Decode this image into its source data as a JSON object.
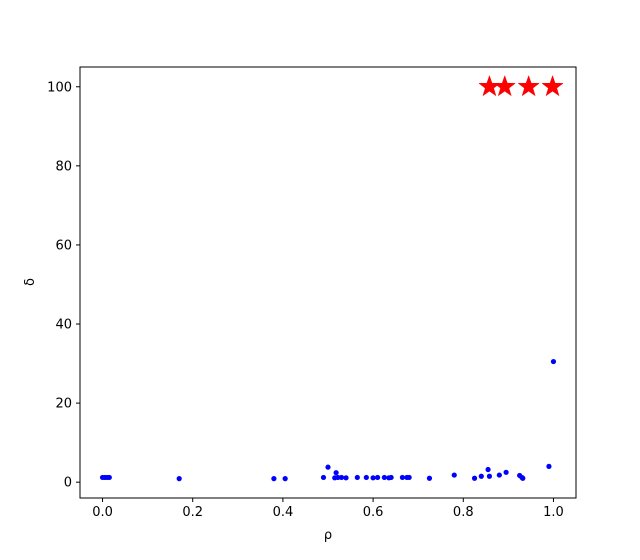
{
  "chart_data": {
    "type": "scatter",
    "title": "",
    "xlabel": "ρ",
    "ylabel": "δ",
    "xlim": [
      -0.05,
      1.05
    ],
    "ylim": [
      -4,
      105
    ],
    "xticks": [
      0.0,
      0.2,
      0.4,
      0.6,
      0.8,
      1.0
    ],
    "xtick_labels": [
      "0.0",
      "0.2",
      "0.4",
      "0.6",
      "0.8",
      "1.0"
    ],
    "yticks": [
      0,
      20,
      40,
      60,
      80,
      100
    ],
    "ytick_labels": [
      "0",
      "20",
      "40",
      "60",
      "80",
      "100"
    ],
    "grid": false,
    "colors": {
      "points": "#0000ff",
      "centers": "#ff0000"
    },
    "series": [
      {
        "marker": "dot",
        "x": [
          0.0,
          0.005,
          0.01,
          0.015,
          0.17,
          0.38,
          0.405,
          0.49,
          0.5,
          0.515,
          0.518,
          0.522,
          0.53,
          0.54,
          0.565,
          0.585,
          0.6,
          0.61,
          0.625,
          0.635,
          0.64,
          0.665,
          0.675,
          0.68,
          0.725,
          0.78,
          0.825,
          0.84,
          0.855,
          0.858,
          0.88,
          0.895,
          0.925,
          0.93,
          0.932,
          0.99,
          1.0
        ],
        "y": [
          1.2,
          1.2,
          1.2,
          1.2,
          0.9,
          0.9,
          0.9,
          1.2,
          3.8,
          1.1,
          2.4,
          1.2,
          1.2,
          1.1,
          1.2,
          1.2,
          1.1,
          1.2,
          1.2,
          1.1,
          1.2,
          1.2,
          1.2,
          1.2,
          1.0,
          1.8,
          1.0,
          1.5,
          3.2,
          1.5,
          1.8,
          2.5,
          1.7,
          1.2,
          1.0,
          4.0,
          30.5
        ]
      },
      {
        "marker": "star",
        "x": [
          0.858,
          0.892,
          0.945,
          0.998
        ],
        "y": [
          100,
          100,
          100,
          100
        ]
      }
    ]
  }
}
